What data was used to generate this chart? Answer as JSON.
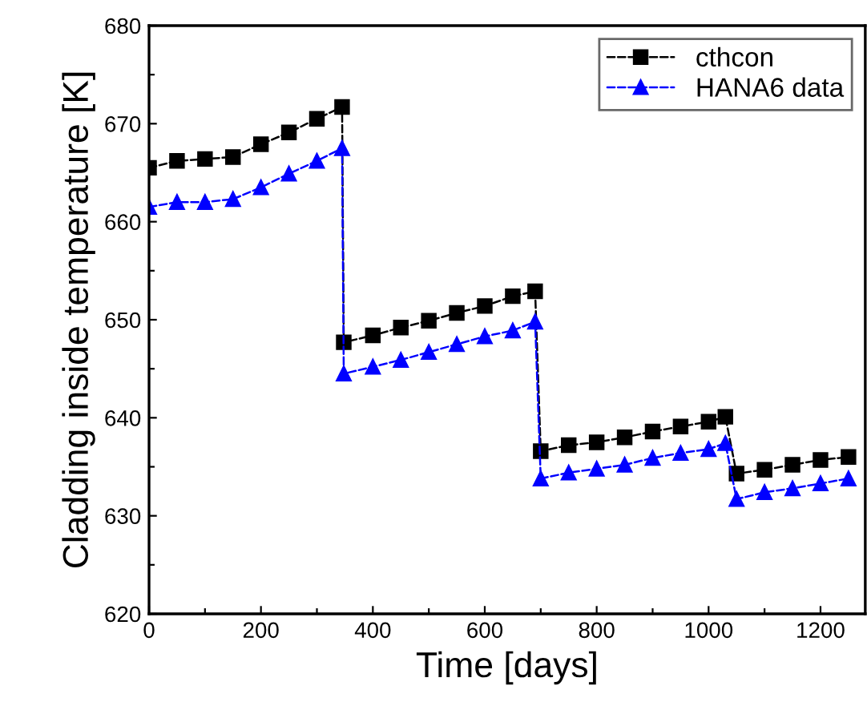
{
  "chart_data": {
    "type": "line",
    "xlabel": "Time [days]",
    "ylabel": "Cladding inside temperature [K]",
    "xlim": [
      0,
      1280
    ],
    "ylim": [
      620,
      680
    ],
    "xticks": [
      0,
      {
        "value": 100,
        "label": null
      },
      200,
      {
        "value": 300,
        "label": null
      },
      400,
      {
        "value": 500,
        "label": null
      },
      600,
      {
        "value": 700,
        "label": null
      },
      800,
      {
        "value": 900,
        "label": null
      },
      1000,
      {
        "value": 1100,
        "label": null
      },
      1200
    ],
    "yticks": [
      620,
      {
        "value": 625,
        "label": null
      },
      630,
      {
        "value": 635,
        "label": null
      },
      640,
      {
        "value": 645,
        "label": null
      },
      650,
      {
        "value": 655,
        "label": null
      },
      660,
      {
        "value": 665,
        "label": null
      },
      670,
      {
        "value": 675,
        "label": null
      },
      680
    ],
    "grid": false,
    "legend": "top right",
    "line_style": "dashed",
    "series": [
      {
        "name": "cthcon",
        "color": "#000000",
        "marker": "square",
        "x": [
          0,
          50,
          100,
          150,
          200,
          250,
          300,
          345,
          348,
          400,
          450,
          500,
          550,
          600,
          650,
          690,
          700,
          750,
          800,
          850,
          900,
          950,
          1000,
          1030,
          1050,
          1100,
          1150,
          1200,
          1250
        ],
        "values": [
          665.5,
          666.2,
          666.4,
          666.6,
          667.9,
          669.1,
          670.5,
          671.7,
          647.7,
          648.4,
          649.2,
          649.9,
          650.7,
          651.4,
          652.4,
          652.9,
          636.6,
          637.2,
          637.5,
          638.0,
          638.6,
          639.1,
          639.6,
          640.1,
          634.3,
          634.7,
          635.2,
          635.7,
          636.0
        ]
      },
      {
        "name": "HANA6 data",
        "color": "#0000ff",
        "marker": "triangle",
        "x": [
          0,
          50,
          100,
          150,
          200,
          250,
          300,
          345,
          348,
          400,
          450,
          500,
          550,
          600,
          650,
          690,
          700,
          750,
          800,
          850,
          900,
          950,
          1000,
          1030,
          1050,
          1100,
          1150,
          1200,
          1250
        ],
        "values": [
          661.5,
          662.0,
          662.0,
          662.3,
          663.5,
          664.9,
          666.2,
          667.5,
          644.5,
          645.2,
          645.9,
          646.7,
          647.5,
          648.3,
          648.9,
          649.8,
          633.8,
          634.4,
          634.8,
          635.2,
          635.9,
          636.4,
          636.8,
          637.4,
          631.7,
          632.4,
          632.8,
          633.3,
          633.8
        ]
      }
    ]
  }
}
